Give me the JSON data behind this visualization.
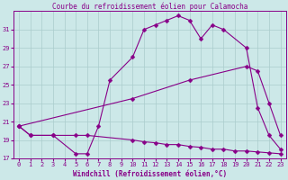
{
  "title": "Courbe du refroidissement éolien pour Calamocha",
  "xlabel": "Windchill (Refroidissement éolien,°C)",
  "bg_color": "#cce8e8",
  "line_color": "#880088",
  "grid_color": "#aacccc",
  "xlim": [
    -0.5,
    23.5
  ],
  "ylim": [
    17,
    33
  ],
  "yticks": [
    17,
    19,
    21,
    23,
    25,
    27,
    29,
    31
  ],
  "xticks": [
    0,
    1,
    2,
    3,
    4,
    5,
    6,
    7,
    8,
    9,
    10,
    11,
    12,
    13,
    14,
    15,
    16,
    17,
    18,
    19,
    20,
    21,
    22,
    23
  ],
  "line1_x": [
    0,
    1,
    3,
    5,
    6,
    7,
    8,
    10,
    11,
    12,
    13,
    14,
    15,
    16,
    17,
    18,
    20,
    21,
    22,
    23
  ],
  "line1_y": [
    20.5,
    19.5,
    19.5,
    17.5,
    17.5,
    20.5,
    25.5,
    28.0,
    31.0,
    31.5,
    32.0,
    32.5,
    32.0,
    30.0,
    31.5,
    31.0,
    29.0,
    22.5,
    19.5,
    18.0
  ],
  "line2_x": [
    0,
    10,
    15,
    20,
    21,
    22,
    23
  ],
  "line2_y": [
    20.5,
    23.5,
    25.5,
    27.0,
    26.5,
    23.0,
    19.5
  ],
  "line3_x": [
    0,
    1,
    3,
    5,
    6,
    10,
    11,
    12,
    13,
    14,
    15,
    16,
    17,
    18,
    19,
    20,
    21,
    22,
    23
  ],
  "line3_y": [
    20.5,
    19.5,
    19.5,
    19.5,
    19.5,
    19.0,
    18.8,
    18.7,
    18.5,
    18.5,
    18.3,
    18.2,
    18.0,
    18.0,
    17.8,
    17.8,
    17.7,
    17.6,
    17.5
  ],
  "title_fontsize": 5.5,
  "label_fontsize": 5.5,
  "tick_fontsize": 5.0
}
